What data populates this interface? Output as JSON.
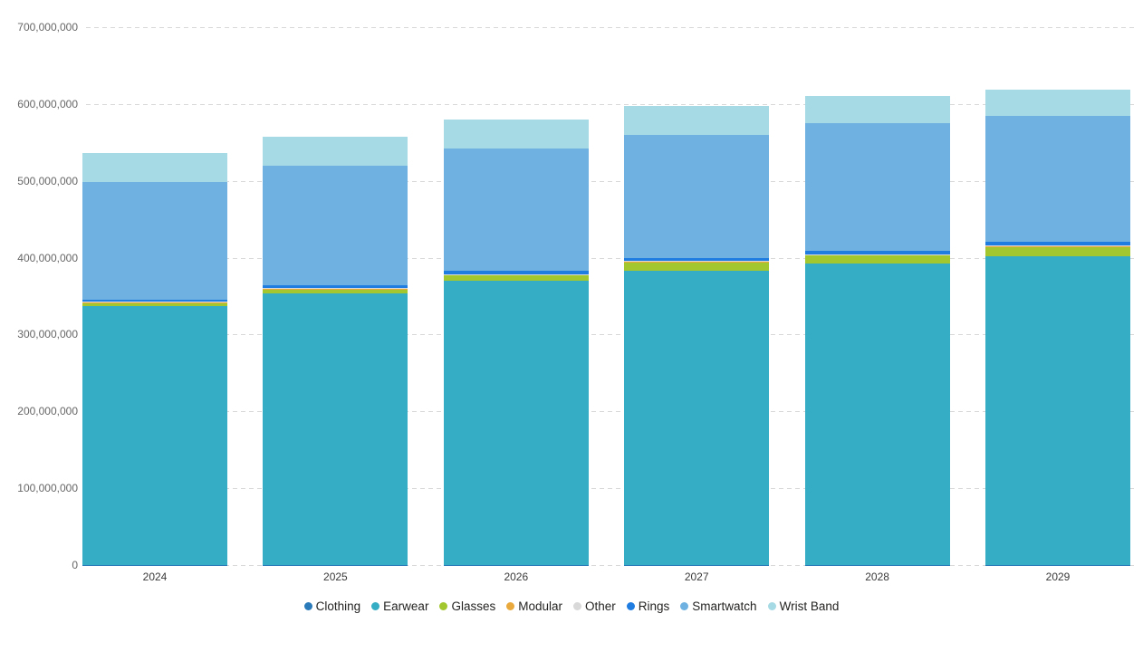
{
  "chart_data": {
    "type": "bar",
    "stacked": true,
    "title": "",
    "categories": [
      "2024",
      "2025",
      "2026",
      "2027",
      "2028",
      "2029"
    ],
    "series": [
      {
        "name": "Clothing",
        "color": "#2a7ab9",
        "values": [
          500000,
          500000,
          500000,
          500000,
          500000,
          500000
        ]
      },
      {
        "name": "Earwear",
        "color": "#35adc4",
        "values": [
          336000000,
          353000000,
          369000000,
          383000000,
          392000000,
          401000000
        ]
      },
      {
        "name": "Glasses",
        "color": "#a3c72f",
        "values": [
          5000000,
          6000000,
          8000000,
          11000000,
          11000000,
          13000000
        ]
      },
      {
        "name": "Modular",
        "color": "#e9a93c",
        "values": [
          500000,
          500000,
          500000,
          500000,
          500000,
          500000
        ]
      },
      {
        "name": "Other",
        "color": "#d9d9d9",
        "values": [
          500000,
          500000,
          500000,
          500000,
          500000,
          500000
        ]
      },
      {
        "name": "Rings",
        "color": "#1f7ce0",
        "values": [
          3000000,
          3500000,
          4000000,
          4500000,
          4000000,
          5000000
        ]
      },
      {
        "name": "Smartwatch",
        "color": "#6fb2e2",
        "values": [
          153000000,
          156000000,
          159000000,
          160000000,
          166000000,
          164000000
        ]
      },
      {
        "name": "Wrist Band",
        "color": "#a6dae4",
        "values": [
          38000000,
          37000000,
          38000000,
          37000000,
          36000000,
          34000000
        ]
      }
    ],
    "totals": [
      536500000,
      557000000,
      579500000,
      597000000,
      610500000,
      618500000
    ],
    "ylim": [
      0,
      700000000
    ],
    "ytick_interval": 100000000,
    "y_ticks": [
      {
        "value": 700000000,
        "label": "700,000,000"
      },
      {
        "value": 600000000,
        "label": "600,000,000"
      },
      {
        "value": 500000000,
        "label": "500,000,000"
      },
      {
        "value": 400000000,
        "label": "400,000,000"
      },
      {
        "value": 300000000,
        "label": "300,000,000"
      },
      {
        "value": 200000000,
        "label": "200,000,000"
      },
      {
        "value": 100000000,
        "label": "100,000,000"
      },
      {
        "value": 0,
        "label": "0"
      }
    ],
    "grid": "horizontal-dashed",
    "legend_position": "bottom",
    "xlabel": "",
    "ylabel": ""
  },
  "legend": {
    "items": [
      {
        "label": "Clothing",
        "color": "#2a7ab9"
      },
      {
        "label": "Earwear",
        "color": "#35adc4"
      },
      {
        "label": "Glasses",
        "color": "#a3c72f"
      },
      {
        "label": "Modular",
        "color": "#e9a93c"
      },
      {
        "label": "Other",
        "color": "#d9d9d9"
      },
      {
        "label": "Rings",
        "color": "#1f7ce0"
      },
      {
        "label": "Smartwatch",
        "color": "#6fb2e2"
      },
      {
        "label": "Wrist Band",
        "color": "#a6dae4"
      }
    ]
  }
}
